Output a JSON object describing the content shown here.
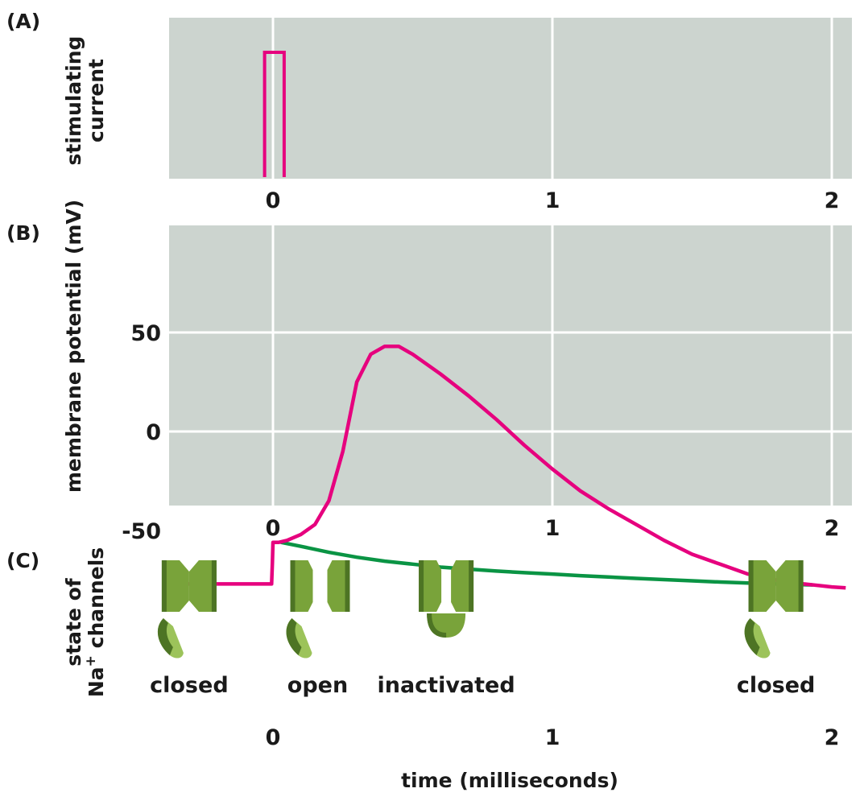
{
  "colors": {
    "plot_background": "#ccd4cf",
    "gridline": "#ffffff",
    "stimulus_trace": "#e6007e",
    "action_potential_trace": "#e6007e",
    "subthreshold_trace": "#0a9444",
    "channel_green": "#79a33a",
    "channel_dark": "#4d7424",
    "channel_light": "#9cc35a"
  },
  "panels": {
    "a": {
      "letter": "(A)",
      "ylabel_line1": "stimulating",
      "ylabel_line2": "current"
    },
    "b": {
      "letter": "(B)",
      "ylabel": "membrane potential (mV)"
    },
    "c": {
      "letter": "(C)",
      "ylabel_line1": "state of",
      "ylabel_line2_prefix": "Na",
      "ylabel_line2_sup": "+",
      "ylabel_line2_suffix": " channels"
    }
  },
  "xlabel": "time (milliseconds)",
  "x_ticks": [
    "0",
    "1",
    "2"
  ],
  "y_ticks_b": [
    "50",
    "0",
    "-50"
  ],
  "channel_states": [
    {
      "label": "closed",
      "time": -0.3,
      "icon": "na-channel-closed-icon"
    },
    {
      "label": "open",
      "time": 0.16,
      "icon": "na-channel-open-icon"
    },
    {
      "label": "inactivated",
      "time": 0.62,
      "icon": "na-channel-inactivated-icon"
    },
    {
      "label": "closed",
      "time": 1.8,
      "icon": "na-channel-closed-icon"
    }
  ],
  "chart_data": [
    {
      "type": "line",
      "panel": "A",
      "ylabel": "stimulating current",
      "xlim": [
        -0.37,
        2.05
      ],
      "x_ticks": [
        0,
        1,
        2
      ],
      "grid": true,
      "series": [
        {
          "x": [
            -0.03,
            -0.03,
            0.04,
            0.04
          ],
          "y": [
            0,
            1,
            1,
            0
          ]
        }
      ]
    },
    {
      "type": "line",
      "panel": "B",
      "xlabel": "time (milliseconds)",
      "ylabel": "membrane potential (mV)",
      "xlim": [
        -0.37,
        2.05
      ],
      "ylim": [
        -88,
        52
      ],
      "x_ticks": [
        0,
        1,
        2
      ],
      "y_ticks": [
        50,
        0,
        -50
      ],
      "grid": true,
      "series": [
        {
          "x": [
            -0.37,
            -0.005,
            -0.002,
            0.0,
            0.02,
            0.05,
            0.1,
            0.15,
            0.2,
            0.25,
            0.3,
            0.35,
            0.4,
            0.45,
            0.5,
            0.6,
            0.7,
            0.8,
            0.9,
            1.0,
            1.1,
            1.2,
            1.3,
            1.4,
            1.5,
            1.6,
            1.7,
            1.8,
            1.9,
            2.0,
            2.05
          ],
          "y": [
            -77,
            -77,
            -66,
            -56,
            -56,
            -55,
            -52,
            -47,
            -35,
            -10,
            25,
            39,
            43,
            43,
            39,
            29,
            18,
            6,
            -7,
            -19,
            -30,
            -39,
            -47,
            -55,
            -62,
            -67,
            -72,
            -75,
            -77,
            -78.5,
            -79
          ]
        },
        {
          "x": [
            0.03,
            0.1,
            0.2,
            0.3,
            0.4,
            0.5,
            0.6,
            0.7,
            0.8,
            0.9,
            1.0,
            1.1,
            1.2,
            1.3,
            1.4,
            1.5,
            1.6,
            1.7,
            1.8,
            1.93
          ],
          "y": [
            -56,
            -58,
            -61,
            -63.5,
            -65.5,
            -67,
            -68.5,
            -69.5,
            -70.5,
            -71.3,
            -72,
            -72.8,
            -73.5,
            -74.2,
            -74.8,
            -75.4,
            -76,
            -76.5,
            -77,
            -77.5
          ]
        }
      ]
    }
  ]
}
